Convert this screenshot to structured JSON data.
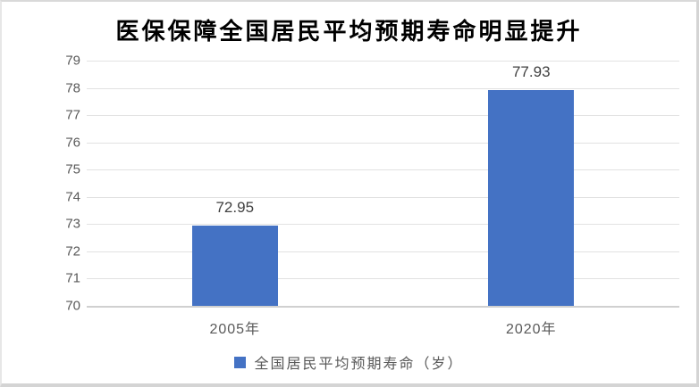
{
  "header": {
    "title": "医保保障全国居民平均预期寿命明显提升"
  },
  "chart_data": {
    "type": "bar",
    "title": "医保保障全国居民平均预期寿命明显提升",
    "categories": [
      "2005年",
      "2020年"
    ],
    "series": [
      {
        "name": "全国居民平均预期寿命（岁）",
        "values": [
          72.95,
          77.93
        ]
      }
    ],
    "data_labels": [
      "72.95",
      "77.93"
    ],
    "xlabel": "",
    "ylabel": "",
    "ylim": [
      70,
      79
    ],
    "yticks": [
      70,
      71,
      72,
      73,
      74,
      75,
      76,
      77,
      78,
      79
    ],
    "grid": true,
    "legend_position": "bottom"
  },
  "colors": {
    "bar": "#4472C4",
    "grid_line": "#E2E2E2",
    "axis_line": "#D0D0D0",
    "tick_label": "#595959",
    "data_label": "#404040",
    "title": "#000000",
    "frame": "#D4D4D4"
  }
}
